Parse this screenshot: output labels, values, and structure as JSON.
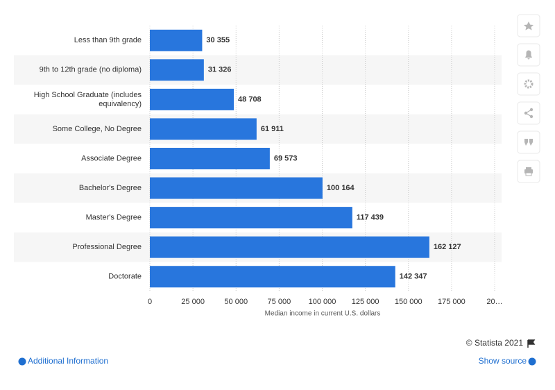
{
  "chart_data": {
    "type": "bar",
    "orientation": "horizontal",
    "x_label": "Median income in current U.S. dollars",
    "categories": [
      "Less than 9th grade",
      "9th to 12th grade (no diploma)",
      "High School Graduate (includes equivalency)",
      "Some College, No Degree",
      "Associate Degree",
      "Bachelor's Degree",
      "Master's Degree",
      "Professional Degree",
      "Doctorate"
    ],
    "values": [
      30355,
      31326,
      48708,
      61911,
      69573,
      100164,
      117439,
      162127,
      142347
    ],
    "value_labels": [
      "30 355",
      "31 326",
      "48 708",
      "61 911",
      "69 573",
      "100 164",
      "117 439",
      "162 127",
      "142 347"
    ],
    "color": "#2876dd",
    "xlim": [
      0,
      200000
    ],
    "xticks": [
      0,
      {
        "value": 25000,
        "label": "25 000"
      },
      {
        "value": 50000,
        "label": "50 000"
      },
      {
        "value": 75000,
        "label": "75 000"
      },
      {
        "value": 100000,
        "label": "100 000"
      },
      {
        "value": 125000,
        "label": "125 000"
      },
      {
        "value": 150000,
        "label": "150 000"
      },
      {
        "value": 175000,
        "label": "175 000"
      },
      {
        "value": 200000,
        "label": "20…"
      }
    ],
    "grid": true
  },
  "footer": {
    "credit": "© Statista 2021",
    "additional_info": "Additional Information",
    "show_source": "Show source"
  }
}
